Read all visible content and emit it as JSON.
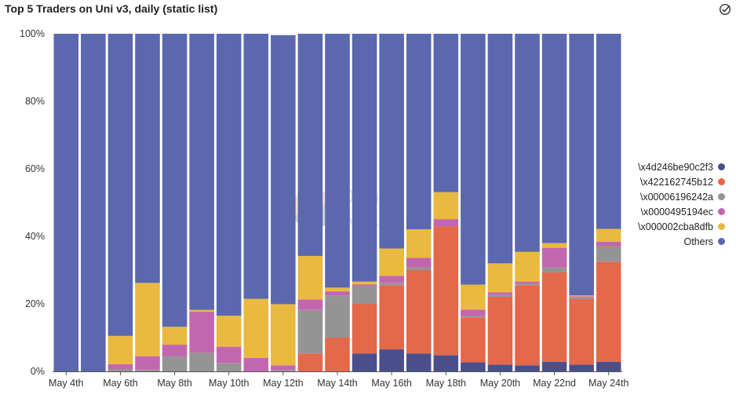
{
  "title": "Top 5 Traders on Uni v3, daily (static list)",
  "header_icon": "check-circle-icon",
  "watermark": {
    "line1": "Dune",
    "line2": "Analytics"
  },
  "colors": [
    "#4a4f8c",
    "#e4684a",
    "#949494",
    "#c366b0",
    "#e9b940",
    "#5b68ae"
  ],
  "chart_data": {
    "type": "bar",
    "stacked": true,
    "normalized": true,
    "title": "Top 5 Traders on Uni v3, daily (static list)",
    "xlabel": "",
    "ylabel": "",
    "ylim": [
      0,
      100
    ],
    "yticks": [
      "0%",
      "20%",
      "40%",
      "60%",
      "80%",
      "100%"
    ],
    "grid": false,
    "legend_position": "right",
    "categories": [
      "May 4th",
      "May 5th",
      "May 6th",
      "May 7th",
      "May 8th",
      "May 9th",
      "May 10th",
      "May 11th",
      "May 12th",
      "May 13th",
      "May 14th",
      "May 15th",
      "May 16th",
      "May 17th",
      "May 18th",
      "May 19th",
      "May 20th",
      "May 21st",
      "May 22nd",
      "May 23rd",
      "May 24th"
    ],
    "xtick_labels": [
      "May 4th",
      "May 6th",
      "May 8th",
      "May 10th",
      "May 12th",
      "May 14th",
      "May 16th",
      "May 18th",
      "May 20th",
      "May 22nd",
      "May 24th"
    ],
    "series": [
      {
        "name": "\\x4d246be90c2f3",
        "values": [
          0,
          0,
          0,
          0,
          0,
          0,
          0,
          0,
          0,
          0,
          0,
          5.3,
          6.5,
          5.3,
          4.8,
          2.7,
          2,
          1.8,
          2.8,
          2,
          2.8
        ]
      },
      {
        "name": "\\x422162745b12",
        "values": [
          0,
          0,
          0,
          0,
          0,
          0,
          0,
          0,
          0,
          5.3,
          10,
          14.7,
          19,
          24.7,
          38.2,
          13.3,
          20.1,
          23.7,
          26.5,
          19.4,
          29.7
        ]
      },
      {
        "name": "\\x00006196242a",
        "values": [
          0,
          0,
          0.7,
          0.5,
          4.4,
          5.5,
          2.5,
          0,
          0.4,
          12.9,
          12.5,
          5.2,
          0.7,
          0.8,
          0,
          0.5,
          0.5,
          0.5,
          1.5,
          0.5,
          4.5
        ]
      },
      {
        "name": "\\x0000495194ec",
        "values": [
          0,
          0,
          1.4,
          4,
          3.5,
          12.2,
          4.8,
          4,
          1.4,
          3.1,
          1.2,
          0.5,
          2.1,
          2.8,
          2.1,
          1.8,
          0.8,
          0.6,
          5.8,
          0.3,
          1.4
        ]
      },
      {
        "name": "\\x000002cba8dfb",
        "values": [
          0,
          0,
          8.4,
          21.7,
          5.3,
          0.5,
          9.2,
          17.5,
          18.1,
          12.9,
          1.1,
          0.9,
          8.1,
          8.5,
          8,
          7.4,
          8.6,
          8.8,
          1.4,
          0.3,
          3.8
        ]
      },
      {
        "name": "Others",
        "values": [
          100,
          100,
          89.5,
          73.8,
          86.8,
          81.8,
          83.5,
          78.5,
          79.7,
          65.8,
          75.2,
          73.4,
          63.6,
          57.9,
          46.9,
          74.3,
          68,
          64.6,
          62,
          77.5,
          57.8
        ]
      }
    ]
  }
}
